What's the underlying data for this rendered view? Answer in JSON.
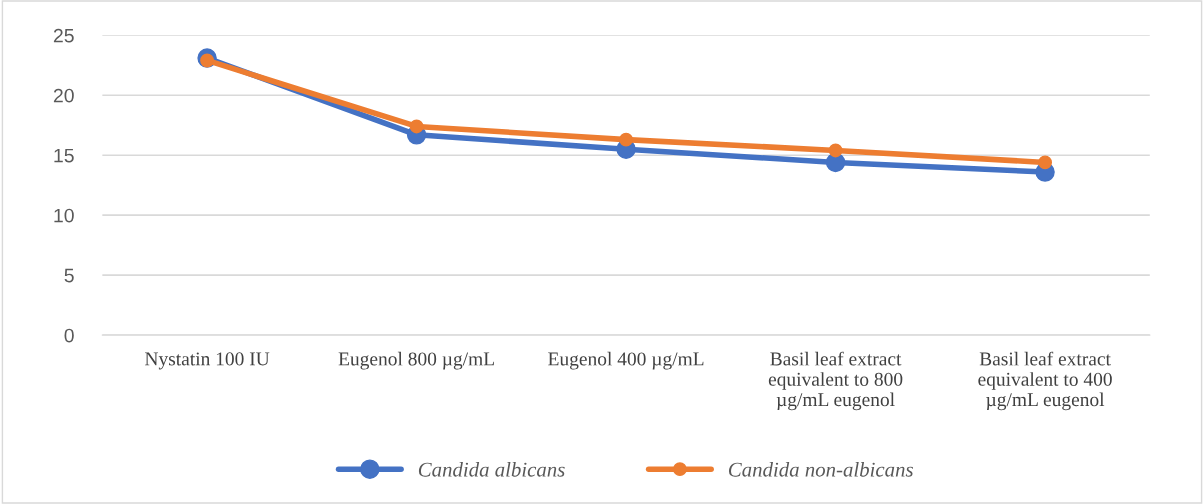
{
  "chart_data": {
    "type": "line",
    "categories": [
      "Nystatin 100 IU",
      "Eugenol 800 µg/mL",
      "Eugenol 400 µg/mL",
      "Basil leaf extract equivalent to 800 µg/mL eugenol",
      "Basil leaf extract equivalent to 400 µg/mL eugenol"
    ],
    "series": [
      {
        "name": "Candida albicans",
        "color": "#4472c4",
        "values": [
          23.1,
          16.7,
          15.5,
          14.4,
          13.6
        ]
      },
      {
        "name": "Candida non-albicans",
        "color": "#ed7d31",
        "values": [
          22.9,
          17.4,
          16.3,
          15.4,
          14.4
        ]
      }
    ],
    "ylim": [
      0,
      25
    ],
    "yticks": [
      0,
      5,
      10,
      15,
      20,
      25
    ],
    "grid": "y",
    "legend": "bottom",
    "marker": "circle",
    "line_style": "solid"
  }
}
